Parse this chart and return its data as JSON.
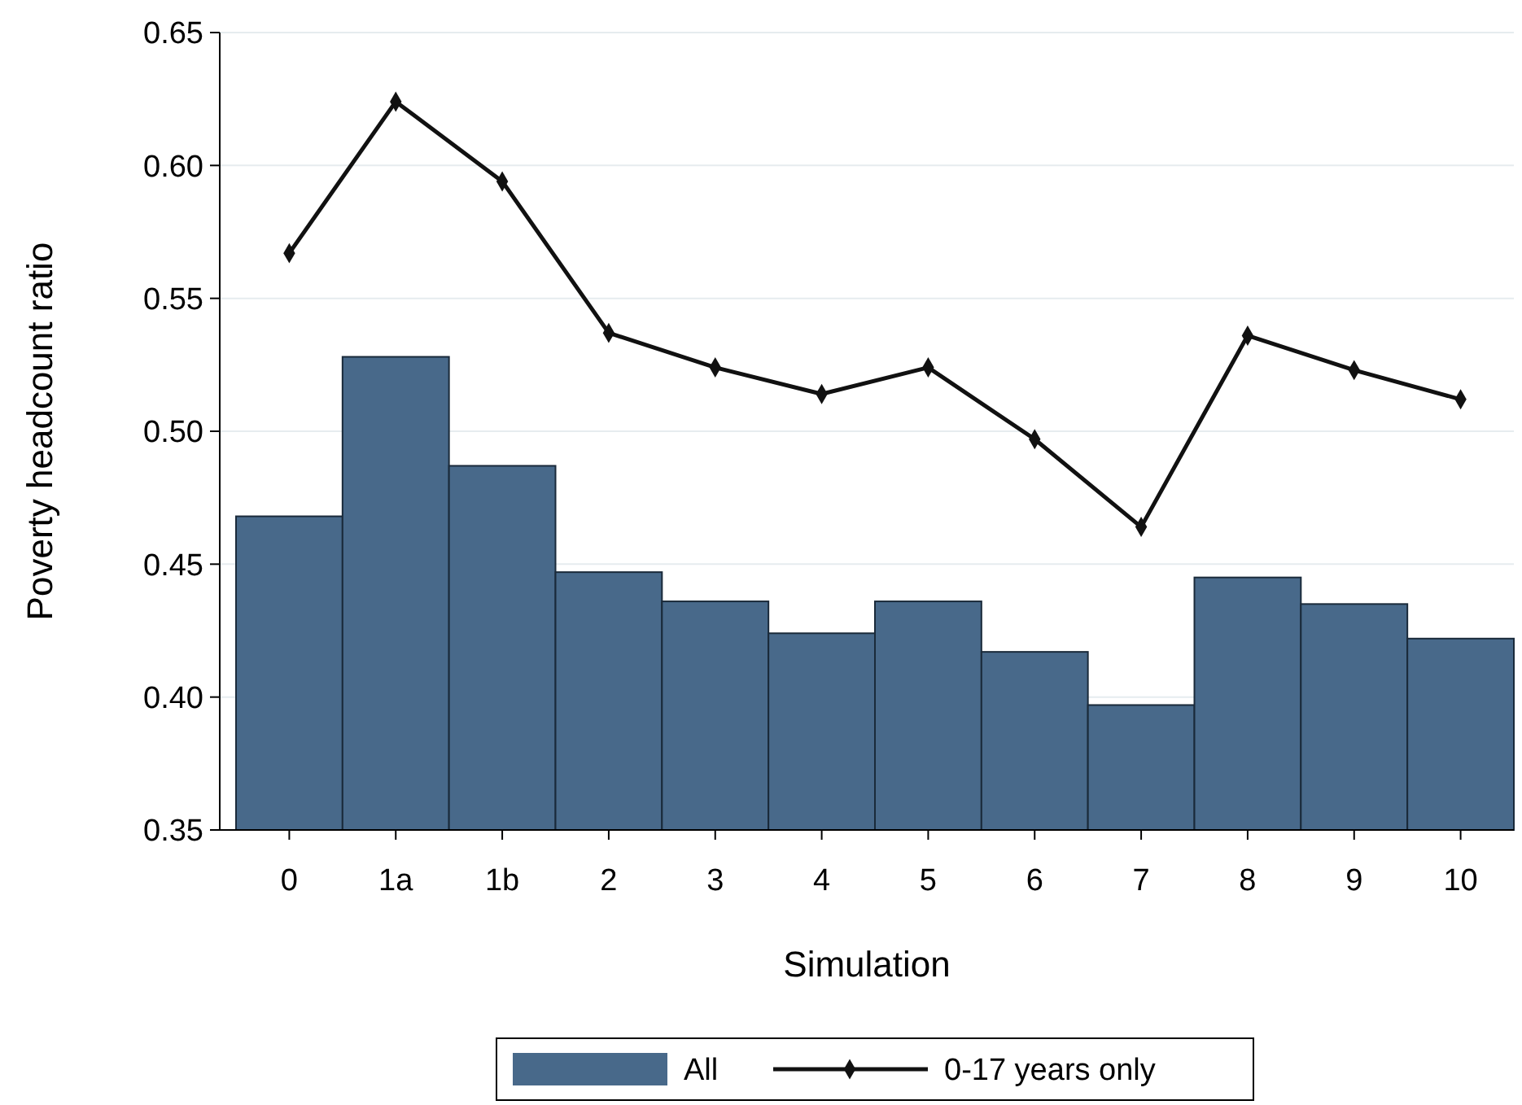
{
  "chart_data": {
    "type": "bar",
    "xlabel": "Simulation",
    "ylabel": "Poverty headcount ratio",
    "categories": [
      "0",
      "1a",
      "1b",
      "2",
      "3",
      "4",
      "5",
      "6",
      "7",
      "8",
      "9",
      "10"
    ],
    "ylim": [
      0.35,
      0.65
    ],
    "yticks": [
      0.35,
      {
        "value": 0.4,
        "label": "0.40"
      },
      0.45,
      {
        "value": 0.5,
        "label": "0.50"
      },
      0.55,
      {
        "value": 0.6,
        "label": "0.60"
      },
      0.65
    ],
    "grid": "y",
    "legend": "bottom",
    "series": [
      {
        "name": "All",
        "color": "#48698a",
        "values": [
          0.468,
          0.528,
          0.487,
          0.447,
          0.436,
          0.424,
          0.436,
          0.417,
          0.397,
          0.445,
          0.435,
          0.422
        ]
      },
      {
        "name": "0-17 years only",
        "type": "line",
        "color": "#111111",
        "marker": "diamond",
        "values": [
          0.567,
          0.624,
          0.594,
          0.537,
          0.524,
          0.514,
          0.524,
          0.497,
          0.464,
          0.536,
          0.523,
          0.512
        ]
      }
    ]
  }
}
